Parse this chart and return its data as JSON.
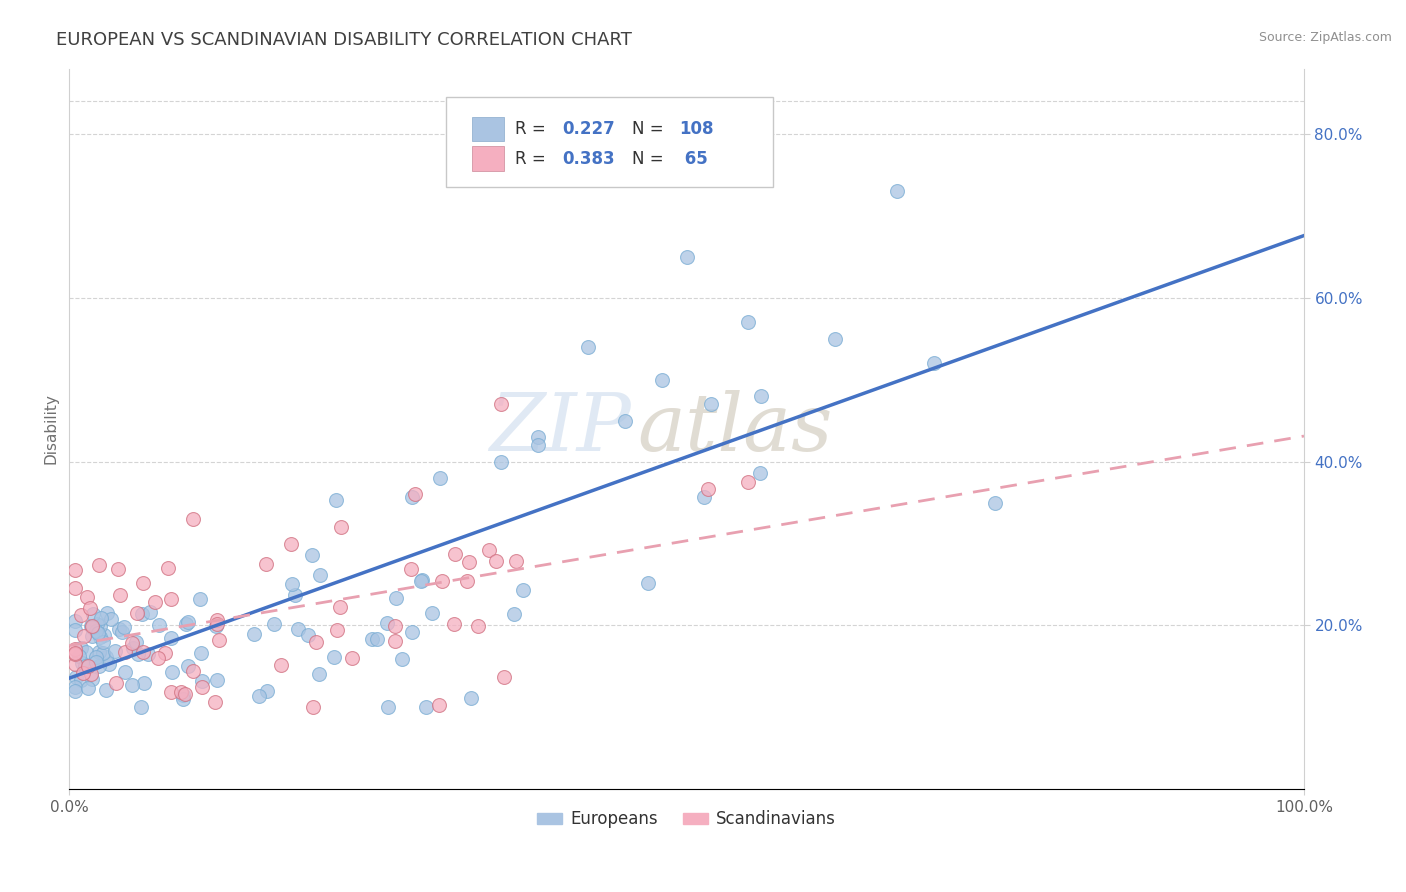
{
  "title": "EUROPEAN VS SCANDINAVIAN DISABILITY CORRELATION CHART",
  "source": "Source: ZipAtlas.com",
  "ylabel": "Disability",
  "xlim": [
    0,
    1
  ],
  "ylim": [
    0,
    0.88
  ],
  "xtick_labels": [
    "0.0%",
    "100.0%"
  ],
  "ytick_labels": [
    "20.0%",
    "40.0%",
    "60.0%",
    "80.0%"
  ],
  "ytick_values": [
    0.2,
    0.4,
    0.6,
    0.8
  ],
  "legend_label1": "Europeans",
  "legend_label2": "Scandinavians",
  "R1": 0.227,
  "N1": 108,
  "R2": 0.383,
  "N2": 65,
  "color_blue": "#aac4e2",
  "color_pink": "#f5afc0",
  "color_blue_text": "#4472c4",
  "trendline1_color": "#4472c4",
  "trendline2_color": "#e8a0b0",
  "background_color": "#ffffff",
  "grid_color": "#d0d0d0",
  "title_color": "#404040"
}
